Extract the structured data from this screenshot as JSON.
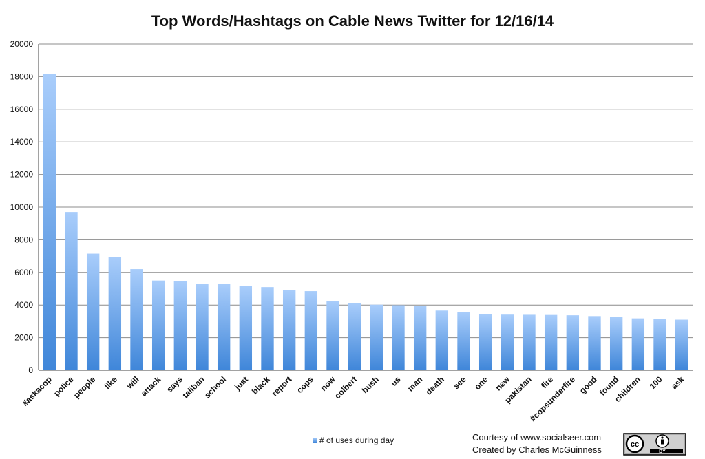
{
  "chart_data": {
    "type": "bar",
    "title": "Top Words/Hashtags on Cable News Twitter for 12/16/14",
    "xlabel": "",
    "ylabel": "",
    "ylim": [
      0,
      20000
    ],
    "yticks": [
      0,
      2000,
      4000,
      6000,
      8000,
      10000,
      12000,
      14000,
      16000,
      18000,
      20000
    ],
    "grid": true,
    "legend_position": "bottom",
    "categories": [
      "#askacop",
      "police",
      "people",
      "like",
      "will",
      "attack",
      "says",
      "taliban",
      "school",
      "just",
      "black",
      "report",
      "cops",
      "now",
      "colbert",
      "bush",
      "us",
      "man",
      "death",
      "see",
      "one",
      "new",
      "pakistan",
      "fire",
      "#copsunderfire",
      "good",
      "found",
      "children",
      "100",
      "ask"
    ],
    "series": [
      {
        "name": "# of uses during day",
        "values": [
          18150,
          9700,
          7150,
          6950,
          6200,
          5500,
          5450,
          5300,
          5280,
          5150,
          5100,
          4920,
          4850,
          4250,
          4130,
          4020,
          3990,
          3950,
          3660,
          3560,
          3460,
          3410,
          3400,
          3390,
          3370,
          3320,
          3280,
          3180,
          3140,
          3100
        ]
      }
    ]
  },
  "credits": {
    "line1": "Courtesy of www.socialseer.com",
    "line2": "Created by Charles McGuinness"
  },
  "license_badge": {
    "icon": "creative-commons-by-icon",
    "cc_text": "cc",
    "by_text": "BY"
  },
  "colors": {
    "bar_top": "#a9cdfb",
    "bar_bottom": "#3f86d9",
    "gridline": "#8c8c8c"
  }
}
